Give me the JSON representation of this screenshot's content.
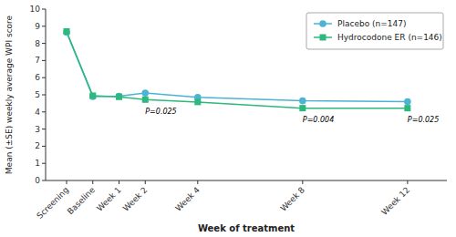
{
  "chart_data": {
    "type": "line",
    "xlabel": "Week of treatment",
    "ylabel": "Mean (±SE) weekly average WPI score",
    "x": [
      0,
      1,
      2,
      3,
      5,
      9,
      13
    ],
    "xlim": [
      -0.8,
      14.5
    ],
    "xticks": [
      {
        "value": 0,
        "label": "Screening"
      },
      {
        "value": 1,
        "label": "Baseline"
      },
      {
        "value": 2,
        "label": "Week 1"
      },
      {
        "value": 3,
        "label": "Week 2"
      },
      {
        "value": 5,
        "label": "Week 4"
      },
      {
        "value": 9,
        "label": "Week 8"
      },
      {
        "value": 13,
        "label": "Week 12"
      }
    ],
    "ylim": [
      0,
      10
    ],
    "yticks": [
      0,
      1,
      2,
      3,
      4,
      5,
      6,
      7,
      8,
      9,
      10
    ],
    "series": [
      {
        "name": "Placebo (n=147)",
        "color": "#4db3d4",
        "marker": "circle",
        "values": [
          8.65,
          4.9,
          4.92,
          5.1,
          4.85,
          4.65,
          4.6
        ],
        "errors": [
          0.09,
          0.12,
          0.12,
          0.14,
          0.13,
          0.13,
          0.14
        ]
      },
      {
        "name": "Hydrocodone ER (n=146)",
        "color": "#2db87d",
        "marker": "square",
        "values": [
          8.7,
          4.95,
          4.88,
          4.72,
          4.58,
          4.22,
          4.22
        ],
        "errors": [
          0.09,
          0.12,
          0.12,
          0.13,
          0.13,
          0.13,
          0.13
        ]
      }
    ],
    "annotations": [
      {
        "x": 3,
        "y": 4.3,
        "text": "P=0.025"
      },
      {
        "x": 9,
        "y": 3.85,
        "text": "P=0.004"
      },
      {
        "x": 13,
        "y": 3.85,
        "text": "P=0.025"
      }
    ],
    "legend": "upper right",
    "grid": false
  }
}
